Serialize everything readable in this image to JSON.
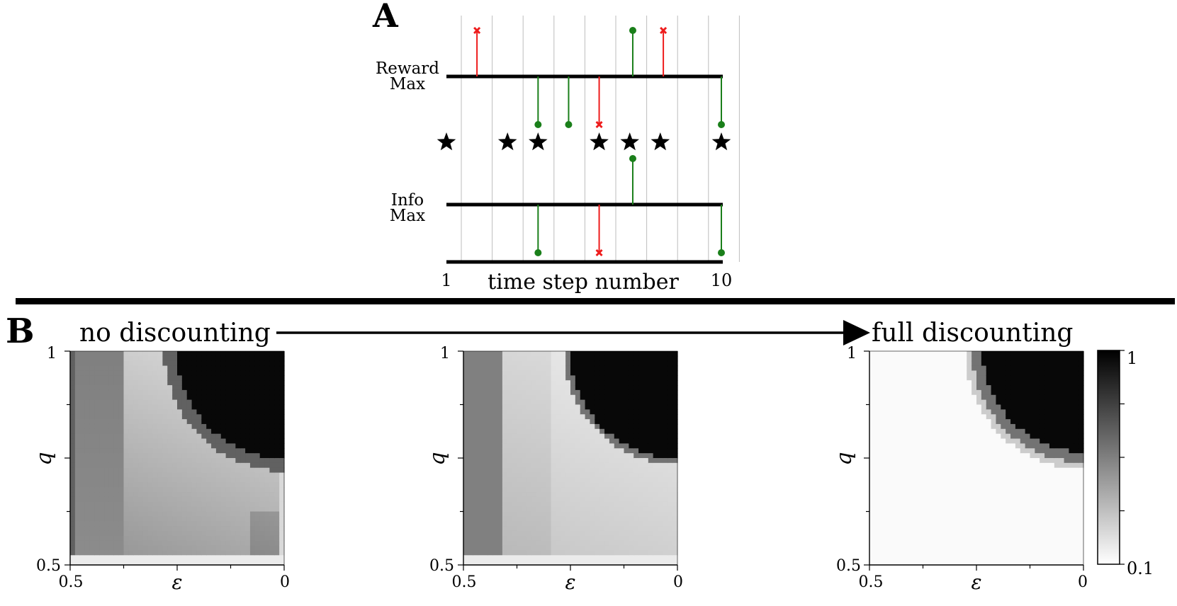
{
  "panel_a": {
    "label": "A",
    "reward_max_label_1": "Reward",
    "reward_max_label_2": "Max",
    "info_max_label_1": "Info",
    "info_max_label_2": "Max",
    "tick_start": "1",
    "tick_end": "10",
    "xlabel": "time step number",
    "colors": {
      "good": "#1a7f1a",
      "bad": "#ee1c1c",
      "grid": "#bdbdbd",
      "line": "#000000"
    },
    "reward_events": [
      {
        "t": 2,
        "kind": "bad",
        "dir": "up"
      },
      {
        "t": 7.1,
        "kind": "good",
        "dir": "up"
      },
      {
        "t": 8.1,
        "kind": "bad",
        "dir": "up"
      },
      {
        "t": 4,
        "kind": "good",
        "dir": "down"
      },
      {
        "t": 5,
        "kind": "good",
        "dir": "down"
      },
      {
        "t": 6,
        "kind": "bad",
        "dir": "down"
      },
      {
        "t": 10,
        "kind": "good",
        "dir": "down"
      }
    ],
    "info_events": [
      {
        "t": 7.1,
        "kind": "good",
        "dir": "up"
      },
      {
        "t": 4,
        "kind": "good",
        "dir": "down"
      },
      {
        "t": 6,
        "kind": "bad",
        "dir": "down"
      },
      {
        "t": 10,
        "kind": "good",
        "dir": "down"
      }
    ],
    "star_steps": [
      1,
      3,
      4,
      6,
      7,
      8,
      10
    ]
  },
  "panel_b": {
    "label": "B",
    "left_text": "no discounting",
    "right_text": "full discounting",
    "ylabel": "q",
    "xlabel": "ε",
    "y_top": "1",
    "y_bottom": "0.5",
    "x_left": "0.5",
    "x_right": "0",
    "colorbar_top": "1",
    "colorbar_bottom": "0.1",
    "colorbar_range": [
      0.1,
      1
    ]
  }
}
